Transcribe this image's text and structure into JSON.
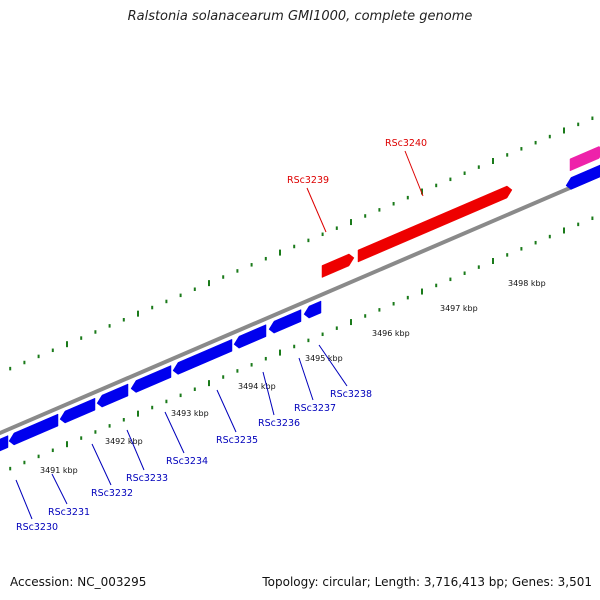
{
  "title": "Ralstonia solanacearum GMI1000, complete genome",
  "footer": {
    "accession": "Accession: NC_003295",
    "stats": "Topology: circular; Length: 3,716,413 bp; Genes: 3,501"
  },
  "colors": {
    "backbone": "#8a8a8a",
    "forward_gene": "#ee0000",
    "reverse_gene": "#0000ee",
    "other_gene": "#ee22aa",
    "tick": "#1a7a1a",
    "forward_label": "#dd0000",
    "reverse_label": "#0000bb"
  },
  "genome_map": {
    "type": "linear-genome-view",
    "visible_range_kbp": [
      3490,
      3499
    ],
    "scale_labels": [
      "3491 kbp",
      "3492 kbp",
      "3493 kbp",
      "3494 kbp",
      "3495 kbp",
      "3496 kbp",
      "3497 kbp",
      "3498 kbp"
    ],
    "forward_genes": [
      {
        "label": "RSc3239"
      },
      {
        "label": "RSc3240"
      }
    ],
    "reverse_genes": [
      {
        "label": "RSc3230"
      },
      {
        "label": "RSc3231"
      },
      {
        "label": "RSc3232"
      },
      {
        "label": "RSc3233"
      },
      {
        "label": "RSc3234"
      },
      {
        "label": "RSc3235"
      },
      {
        "label": "RSc3236"
      },
      {
        "label": "RSc3237"
      },
      {
        "label": "RSc3238"
      }
    ]
  }
}
